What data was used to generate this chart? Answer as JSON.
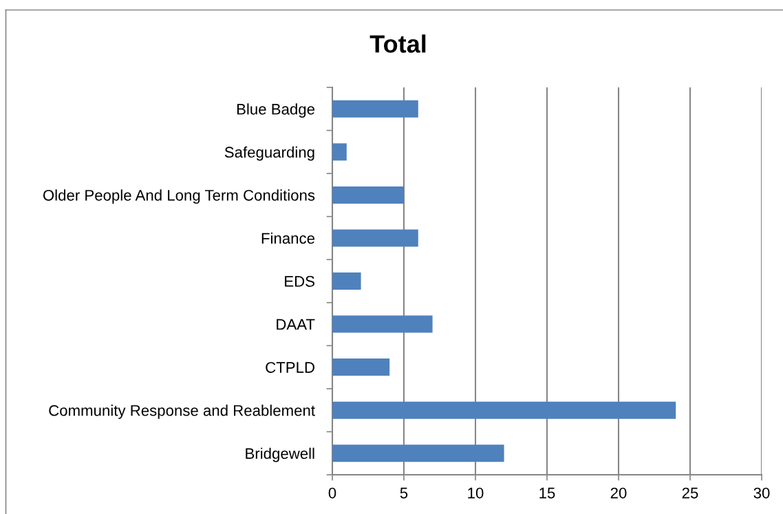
{
  "chart_data": {
    "type": "bar",
    "orientation": "horizontal",
    "title": "Total",
    "categories": [
      "Blue Badge",
      "Safeguarding",
      "Older People And Long Term Conditions",
      "Finance",
      "EDS",
      "DAAT",
      "CTPLD",
      "Community Response and Reablement",
      "Bridgewell"
    ],
    "values": [
      6,
      1,
      5,
      6,
      2,
      7,
      4,
      24,
      12
    ],
    "color": "#4f81bd",
    "xlim": [
      0,
      30
    ],
    "xticks": [
      0,
      5,
      10,
      15,
      20,
      25,
      30
    ],
    "grid": "x",
    "legend": false
  }
}
